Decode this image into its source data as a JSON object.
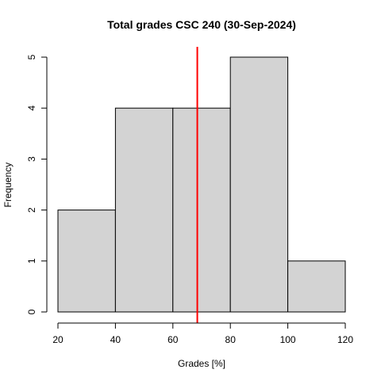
{
  "chart_data": {
    "type": "bar",
    "title": "Total grades CSC 240 (30-Sep-2024)",
    "xlabel": "Grades [%]",
    "ylabel": "Frequency",
    "bins": [
      {
        "from": 20,
        "to": 40,
        "count": 2
      },
      {
        "from": 40,
        "to": 60,
        "count": 4
      },
      {
        "from": 60,
        "to": 80,
        "count": 4
      },
      {
        "from": 80,
        "to": 100,
        "count": 5
      },
      {
        "from": 100,
        "to": 120,
        "count": 1
      }
    ],
    "xlim": [
      20,
      120
    ],
    "ylim": [
      0,
      5
    ],
    "xticks": [
      20,
      40,
      60,
      80,
      100,
      120
    ],
    "yticks": [
      0,
      1,
      2,
      3,
      4,
      5
    ],
    "reference_line": {
      "x": 68.5,
      "color": "#ff0000"
    },
    "bar_color": "#d3d3d3",
    "grid": false,
    "legend": "none"
  }
}
